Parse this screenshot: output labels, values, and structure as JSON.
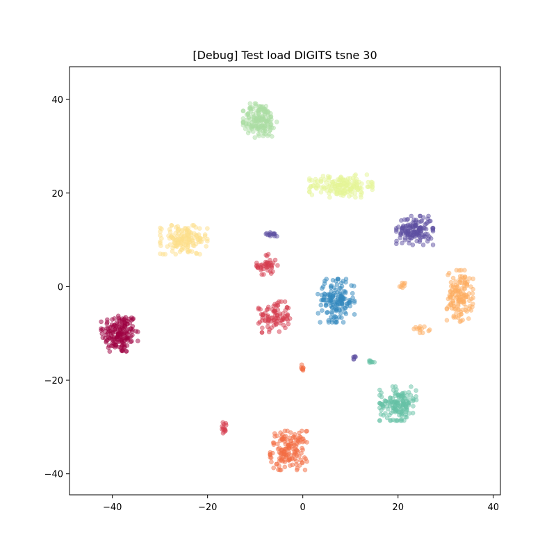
{
  "chart_data": {
    "type": "scatter",
    "title": "[Debug] Test load DIGITS tsne 30",
    "xlabel": "",
    "ylabel": "",
    "xlim": [
      -49,
      41.5
    ],
    "ylim": [
      -44.5,
      47
    ],
    "xticks": [
      -40,
      -20,
      0,
      20,
      40
    ],
    "yticks": [
      -40,
      -20,
      0,
      20,
      40
    ],
    "xtick_labels": [
      "−40",
      "−20",
      "0",
      "20",
      "40"
    ],
    "ytick_labels": [
      "−40",
      "−20",
      "0",
      "20",
      "40"
    ],
    "grid": false,
    "legend": "none",
    "marker_alpha": 0.5,
    "clusters": [
      {
        "color": "#9e0142",
        "center": [
          -38.5,
          -10
        ],
        "spread": [
          3.5,
          4
        ],
        "count": 170
      },
      {
        "color": "#d53e4f",
        "center": [
          -6,
          -6.5
        ],
        "spread": [
          3,
          3
        ],
        "count": 90
      },
      {
        "color": "#d53e4f",
        "center": [
          -7.5,
          4.5
        ],
        "spread": [
          2,
          2.2
        ],
        "count": 45
      },
      {
        "color": "#d53e4f",
        "center": [
          -16.5,
          -30
        ],
        "spread": [
          0.6,
          1.2
        ],
        "count": 14
      },
      {
        "color": "#f46d43",
        "center": [
          -3,
          -35
        ],
        "spread": [
          3.5,
          3.8
        ],
        "count": 150
      },
      {
        "color": "#f46d43",
        "center": [
          0,
          -17.5
        ],
        "spread": [
          0.6,
          0.8
        ],
        "count": 8
      },
      {
        "color": "#fdae61",
        "center": [
          33,
          -2
        ],
        "spread": [
          2.5,
          5
        ],
        "count": 140
      },
      {
        "color": "#fdae61",
        "center": [
          25,
          -9
        ],
        "spread": [
          1.5,
          0.8
        ],
        "count": 12
      },
      {
        "color": "#fdae61",
        "center": [
          21,
          0.3
        ],
        "spread": [
          0.6,
          0.6
        ],
        "count": 8
      },
      {
        "color": "#fee08b",
        "center": [
          -25,
          10
        ],
        "spread": [
          4.5,
          2.8
        ],
        "count": 150
      },
      {
        "color": "#e6f598",
        "center": [
          8,
          21.5
        ],
        "spread": [
          6,
          2.2
        ],
        "count": 170
      },
      {
        "color": "#abdda4",
        "center": [
          -9,
          35.5
        ],
        "spread": [
          3.2,
          3.3
        ],
        "count": 170
      },
      {
        "color": "#66c2a5",
        "center": [
          20,
          -25
        ],
        "spread": [
          3.5,
          3.3
        ],
        "count": 150
      },
      {
        "color": "#66c2a5",
        "center": [
          14.5,
          -16
        ],
        "spread": [
          1,
          0.3
        ],
        "count": 8
      },
      {
        "color": "#3288bd",
        "center": [
          7,
          -3
        ],
        "spread": [
          3.5,
          4.2
        ],
        "count": 150
      },
      {
        "color": "#5e4fa2",
        "center": [
          23.5,
          12
        ],
        "spread": [
          3.5,
          2.8
        ],
        "count": 140
      },
      {
        "color": "#5e4fa2",
        "center": [
          -6.5,
          11.2
        ],
        "spread": [
          1.3,
          0.5
        ],
        "count": 14
      },
      {
        "color": "#5e4fa2",
        "center": [
          11,
          -15
        ],
        "spread": [
          0.5,
          0.5
        ],
        "count": 6
      }
    ]
  }
}
